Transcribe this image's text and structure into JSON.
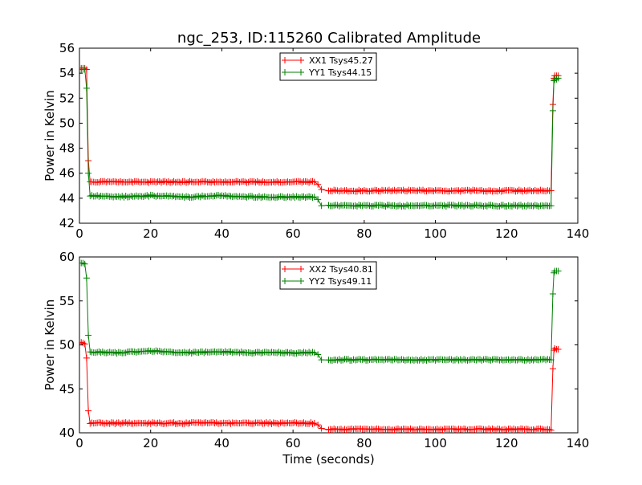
{
  "figure": {
    "title": "ngc_253, ID:115260 Calibrated Amplitude"
  },
  "chart_data": [
    {
      "type": "line",
      "title": "ngc_253, ID:115260 Calibrated Amplitude",
      "xlabel": "",
      "ylabel": "Power in Kelvin",
      "xlim": [
        0,
        140
      ],
      "ylim": [
        42,
        56
      ],
      "xticks": [
        0,
        20,
        40,
        60,
        80,
        100,
        120,
        140
      ],
      "yticks": [
        42,
        44,
        46,
        48,
        50,
        52,
        54,
        56
      ],
      "grid": false,
      "legend_position": "top-center",
      "markers": "plus",
      "series": [
        {
          "name": "XX1 Tsys45.27",
          "color": "#ff0000",
          "points": [
            [
              0.5,
              54.4
            ],
            [
              1,
              54.4
            ],
            [
              1.5,
              54.4
            ],
            [
              2,
              54.3
            ],
            [
              2.5,
              47.0
            ],
            [
              3,
              45.3
            ],
            [
              10,
              45.3
            ],
            [
              20,
              45.3
            ],
            [
              30,
              45.3
            ],
            [
              40,
              45.3
            ],
            [
              50,
              45.3
            ],
            [
              60,
              45.3
            ],
            [
              66,
              45.3
            ],
            [
              67,
              45.1
            ],
            [
              68,
              44.7
            ],
            [
              70,
              44.6
            ],
            [
              80,
              44.6
            ],
            [
              90,
              44.6
            ],
            [
              100,
              44.6
            ],
            [
              110,
              44.6
            ],
            [
              120,
              44.6
            ],
            [
              130,
              44.6
            ],
            [
              132.5,
              44.6
            ],
            [
              133,
              51.5
            ],
            [
              133.3,
              53.6
            ],
            [
              133.5,
              53.8
            ],
            [
              134,
              53.8
            ],
            [
              134.5,
              53.8
            ]
          ]
        },
        {
          "name": "YY1 Tsys44.15",
          "color": "#008000",
          "points": [
            [
              0.5,
              54.3
            ],
            [
              1,
              54.3
            ],
            [
              1.5,
              54.3
            ],
            [
              2,
              52.8
            ],
            [
              2.5,
              46.0
            ],
            [
              3,
              44.2
            ],
            [
              10,
              44.1
            ],
            [
              20,
              44.2
            ],
            [
              30,
              44.1
            ],
            [
              40,
              44.2
            ],
            [
              50,
              44.1
            ],
            [
              60,
              44.1
            ],
            [
              66,
              44.1
            ],
            [
              67,
              43.9
            ],
            [
              68,
              43.4
            ],
            [
              70,
              43.4
            ],
            [
              80,
              43.4
            ],
            [
              90,
              43.4
            ],
            [
              100,
              43.4
            ],
            [
              110,
              43.4
            ],
            [
              120,
              43.4
            ],
            [
              130,
              43.4
            ],
            [
              132.5,
              43.4
            ],
            [
              133,
              51.0
            ],
            [
              133.3,
              53.4
            ],
            [
              133.5,
              53.5
            ],
            [
              134,
              53.5
            ],
            [
              134.5,
              53.6
            ]
          ]
        }
      ]
    },
    {
      "type": "line",
      "title": "",
      "xlabel": "Time (seconds)",
      "ylabel": "Power in Kelvin",
      "xlim": [
        0,
        140
      ],
      "ylim": [
        40,
        60
      ],
      "xticks": [
        0,
        20,
        40,
        60,
        80,
        100,
        120,
        140
      ],
      "yticks": [
        40,
        45,
        50,
        55,
        60
      ],
      "grid": false,
      "legend_position": "top-center",
      "markers": "plus",
      "series": [
        {
          "name": "XX2 Tsys40.81",
          "color": "#ff0000",
          "points": [
            [
              0.5,
              50.3
            ],
            [
              1,
              50.2
            ],
            [
              1.5,
              50.1
            ],
            [
              2,
              48.5
            ],
            [
              2.5,
              42.5
            ],
            [
              3,
              41.1
            ],
            [
              10,
              41.1
            ],
            [
              20,
              41.1
            ],
            [
              30,
              41.1
            ],
            [
              40,
              41.1
            ],
            [
              50,
              41.1
            ],
            [
              60,
              41.1
            ],
            [
              66,
              41.1
            ],
            [
              67,
              40.9
            ],
            [
              68,
              40.5
            ],
            [
              70,
              40.4
            ],
            [
              80,
              40.4
            ],
            [
              90,
              40.4
            ],
            [
              100,
              40.4
            ],
            [
              110,
              40.4
            ],
            [
              120,
              40.4
            ],
            [
              130,
              40.4
            ],
            [
              132.5,
              40.3
            ],
            [
              133,
              47.3
            ],
            [
              133.3,
              49.4
            ],
            [
              133.5,
              49.6
            ],
            [
              134,
              49.5
            ],
            [
              134.5,
              49.5
            ]
          ]
        },
        {
          "name": "YY2 Tsys49.11",
          "color": "#008000",
          "points": [
            [
              0.5,
              59.3
            ],
            [
              1,
              59.3
            ],
            [
              1.5,
              59.2
            ],
            [
              2,
              57.6
            ],
            [
              2.5,
              51.1
            ],
            [
              3,
              49.2
            ],
            [
              10,
              49.1
            ],
            [
              20,
              49.3
            ],
            [
              30,
              49.1
            ],
            [
              40,
              49.2
            ],
            [
              50,
              49.1
            ],
            [
              60,
              49.1
            ],
            [
              66,
              49.1
            ],
            [
              67,
              48.9
            ],
            [
              68,
              48.3
            ],
            [
              70,
              48.3
            ],
            [
              80,
              48.3
            ],
            [
              90,
              48.3
            ],
            [
              100,
              48.3
            ],
            [
              110,
              48.3
            ],
            [
              120,
              48.3
            ],
            [
              130,
              48.3
            ],
            [
              132.5,
              48.3
            ],
            [
              133,
              55.8
            ],
            [
              133.3,
              58.2
            ],
            [
              133.5,
              58.4
            ],
            [
              134,
              58.4
            ],
            [
              134.5,
              58.4
            ]
          ]
        }
      ]
    }
  ]
}
